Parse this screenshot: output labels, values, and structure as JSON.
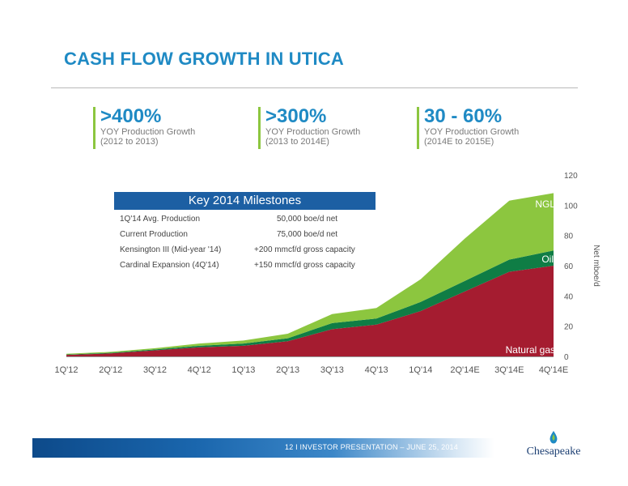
{
  "header": {
    "title": "CASH FLOW GROWTH IN UTICA"
  },
  "stats": [
    {
      "value": ">400%",
      "line1": "YOY Production Growth",
      "line2": "(2012 to 2013)"
    },
    {
      "value": ">300%",
      "line1": "YOY Production Growth",
      "line2": "(2013 to 2014E)"
    },
    {
      "value": "30 - 60%",
      "line1": "YOY Production Growth",
      "line2": "(2014E to 2015E)"
    }
  ],
  "milestones": {
    "title": "Key 2014 Milestones",
    "rows": [
      {
        "label": "1Q'14 Avg. Production",
        "value": "50,000 boe/d net"
      },
      {
        "label": "Current Production",
        "value": "75,000 boe/d net"
      },
      {
        "label": "Kensington III (Mid-year '14)",
        "value": "+200 mmcf/d gross capacity"
      },
      {
        "label": "Cardinal Expansion (4Q'14)",
        "value": "+150 mmcf/d gross capacity"
      }
    ]
  },
  "colors": {
    "gas": "#a51c30",
    "oil": "#0f7d45",
    "ngl": "#8cc63f",
    "accent": "#1f8ac4"
  },
  "chart_data": {
    "type": "area",
    "stacked": true,
    "categories": [
      "1Q'12",
      "2Q'12",
      "3Q'12",
      "4Q'12",
      "1Q'13",
      "2Q'13",
      "3Q'13",
      "4Q'13",
      "1Q'14",
      "2Q'14E",
      "3Q'14E",
      "4Q'14E"
    ],
    "series": [
      {
        "name": "Natural gas",
        "values": [
          1,
          2,
          4,
          6,
          7,
          10,
          18,
          21,
          30,
          43,
          56,
          60
        ]
      },
      {
        "name": "Oil",
        "values": [
          0.3,
          0.4,
          0.6,
          1,
          1.5,
          2,
          4,
          4,
          6,
          7,
          8,
          10
        ]
      },
      {
        "name": "NGL",
        "values": [
          0.4,
          0.6,
          0.8,
          1.5,
          2,
          3,
          6,
          7,
          15,
          28,
          39,
          38
        ]
      }
    ],
    "ylabel": "Net mboe/d",
    "ylim": [
      0,
      120
    ],
    "yticks": [
      0,
      20,
      40,
      60,
      80,
      100,
      120
    ],
    "y_axis_position": "right",
    "grid": false,
    "legend": "inline labels"
  },
  "footer": {
    "text": "12   I   INVESTOR PRESENTATION – JUNE 25, 2014"
  },
  "logo": {
    "text": "Chesapeake"
  }
}
